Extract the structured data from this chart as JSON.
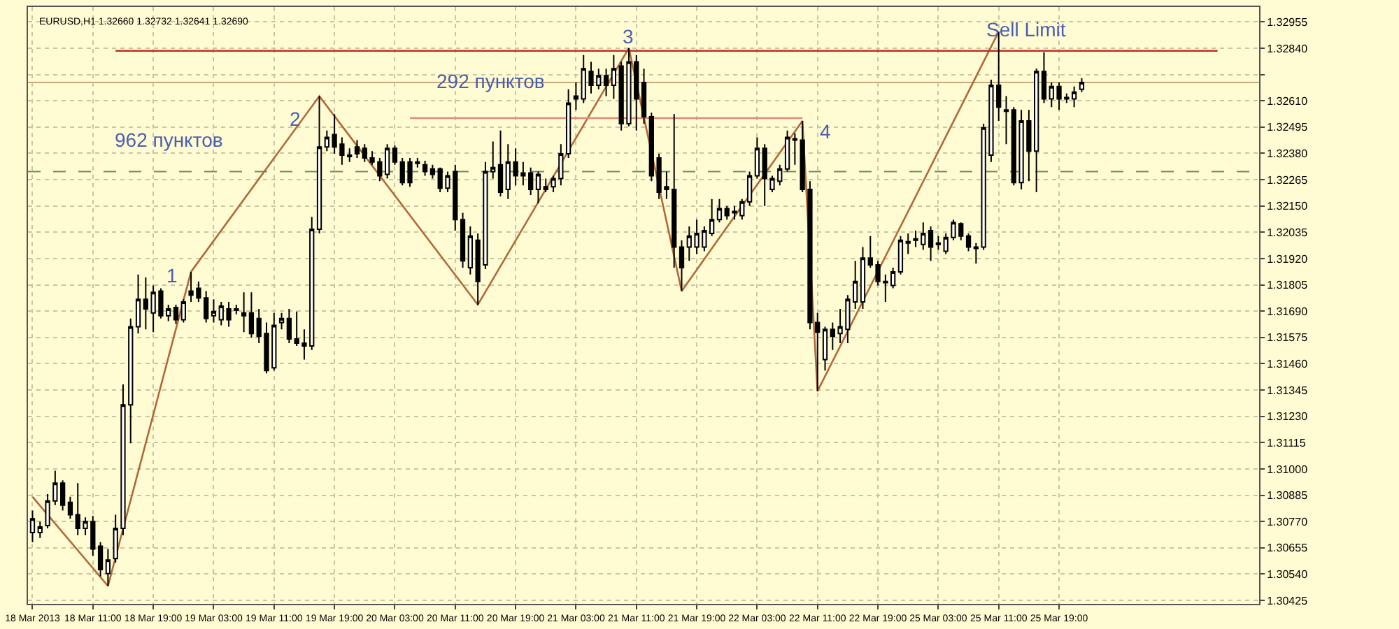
{
  "chart_data": {
    "type": "candlestick",
    "title": "EURUSD,H1 1.32660 1.32732 1.32641 1.32690",
    "color": "#000000",
    "categories": [
      "18 Mar 2013",
      null,
      null,
      null,
      null,
      null,
      null,
      null,
      "18 Mar 11:00",
      null,
      null,
      null,
      null,
      null,
      null,
      null,
      "18 Mar 19:00",
      null,
      null,
      null,
      null,
      null,
      null,
      null,
      "19 Mar 03:00",
      null,
      null,
      null,
      null,
      null,
      null,
      null,
      "19 Mar 11:00",
      null,
      null,
      null,
      null,
      null,
      null,
      null,
      "19 Mar 19:00",
      null,
      null,
      null,
      null,
      null,
      null,
      null,
      "20 Mar 03:00",
      null,
      null,
      null,
      null,
      null,
      null,
      null,
      "20 Mar 11:00",
      null,
      null,
      null,
      null,
      null,
      null,
      null,
      "20 Mar 19:00",
      null,
      null,
      null,
      null,
      null,
      null,
      null,
      "21 Mar 03:00",
      null,
      null,
      null,
      null,
      null,
      null,
      null,
      "21 Mar 11:00",
      null,
      null,
      null,
      null,
      null,
      null,
      null,
      "21 Mar 19:00",
      null,
      null,
      null,
      null,
      null,
      null,
      null,
      "22 Mar 03:00",
      null,
      null,
      null,
      null,
      null,
      null,
      null,
      "22 Mar 11:00",
      null,
      null,
      null,
      null,
      null,
      null,
      null,
      "22 Mar 19:00",
      null,
      null,
      null,
      null,
      null,
      null,
      null,
      "25 Mar 03:00",
      null,
      null,
      null,
      null,
      null,
      null,
      null,
      "25 Mar 11:00",
      null,
      null,
      null,
      null,
      null,
      null,
      null,
      "25 Mar 19:00",
      null,
      null,
      null,
      null,
      null,
      null,
      null,
      null,
      null,
      null,
      null,
      null,
      null,
      null,
      null,
      null,
      null,
      null,
      null,
      null,
      null,
      null,
      null,
      null,
      null,
      null
    ],
    "ohlc": [
      [
        1.30722,
        1.30818,
        1.3068,
        1.30782
      ],
      [
        1.30722,
        1.3077,
        1.30698,
        1.30746
      ],
      [
        1.30752,
        1.3089,
        1.3074,
        1.3086
      ],
      [
        1.3086,
        1.30992,
        1.30842,
        1.30938
      ],
      [
        1.30938,
        1.3095,
        1.30818,
        1.30842
      ],
      [
        1.30854,
        1.30878,
        1.30782,
        1.308
      ],
      [
        1.308,
        1.30938,
        1.3071,
        1.3074
      ],
      [
        1.3074,
        1.30788,
        1.3071,
        1.3077
      ],
      [
        1.3077,
        1.30794,
        1.3062,
        1.3065
      ],
      [
        1.30662,
        1.3068,
        1.3053,
        1.3056
      ],
      [
        1.30542,
        1.3065,
        1.30488,
        1.30602
      ],
      [
        1.30608,
        1.308,
        1.3059,
        1.3074
      ],
      [
        1.3074,
        1.3137,
        1.3071,
        1.3128
      ],
      [
        1.3128,
        1.31658,
        1.31112,
        1.31622
      ],
      [
        1.31622,
        1.3185,
        1.31592,
        1.31742
      ],
      [
        1.31742,
        1.31838,
        1.3161,
        1.317
      ],
      [
        1.31682,
        1.31802,
        1.31598,
        1.31772
      ],
      [
        1.31778,
        1.3179,
        1.31658,
        1.3167
      ],
      [
        1.3167,
        1.31718,
        1.31646,
        1.317
      ],
      [
        1.31706,
        1.31718,
        1.31634,
        1.31652
      ],
      [
        1.31652,
        1.31742,
        1.3164,
        1.3173
      ],
      [
        1.31778,
        1.31862,
        1.3173,
        1.3176
      ],
      [
        1.3179,
        1.3182,
        1.3173,
        1.31748
      ],
      [
        1.31748,
        1.31778,
        1.3164,
        1.31658
      ],
      [
        1.3167,
        1.31742,
        1.3164,
        1.31688
      ],
      [
        1.31652,
        1.3173,
        1.31628,
        1.31712
      ],
      [
        1.317,
        1.3173,
        1.31622,
        1.31652
      ],
      [
        1.31694,
        1.31718,
        1.31676,
        1.317
      ],
      [
        1.31682,
        1.31772,
        1.31598,
        1.3167
      ],
      [
        1.31682,
        1.31772,
        1.31574,
        1.31592
      ],
      [
        1.31658,
        1.317,
        1.3155,
        1.3158
      ],
      [
        1.31592,
        1.3164,
        1.31418,
        1.3143
      ],
      [
        1.31442,
        1.31682,
        1.3143,
        1.31628
      ],
      [
        1.3164,
        1.31682,
        1.3161,
        1.31658
      ],
      [
        1.31658,
        1.317,
        1.3155,
        1.31568
      ],
      [
        1.31568,
        1.31688,
        1.31538,
        1.3155
      ],
      [
        1.3155,
        1.3161,
        1.31478,
        1.31538
      ],
      [
        1.31538,
        1.32102,
        1.3152,
        1.32048
      ],
      [
        1.32048,
        1.3263,
        1.3203,
        1.32408
      ],
      [
        1.32408,
        1.3248,
        1.3239,
        1.3245
      ],
      [
        1.32462,
        1.32552,
        1.32378,
        1.32408
      ],
      [
        1.3242,
        1.3245,
        1.3233,
        1.32372
      ],
      [
        1.32372,
        1.32402,
        1.32342,
        1.32366
      ],
      [
        1.32408,
        1.32438,
        1.3236,
        1.32378
      ],
      [
        1.32402,
        1.3242,
        1.32342,
        1.3236
      ],
      [
        1.3236,
        1.3239,
        1.3233,
        1.32342
      ],
      [
        1.32342,
        1.3236,
        1.32258,
        1.32282
      ],
      [
        1.32288,
        1.3242,
        1.3227,
        1.32402
      ],
      [
        1.32402,
        1.32414,
        1.3233,
        1.32342
      ],
      [
        1.32342,
        1.3236,
        1.3224,
        1.32252
      ],
      [
        1.32342,
        1.3236,
        1.32234,
        1.32252
      ],
      [
        1.32342,
        1.3236,
        1.32318,
        1.32336
      ],
      [
        1.3233,
        1.32348,
        1.32282,
        1.323
      ],
      [
        1.32312,
        1.3233,
        1.3227,
        1.32288
      ],
      [
        1.32312,
        1.32318,
        1.3221,
        1.32228
      ],
      [
        1.32228,
        1.323,
        1.3221,
        1.32282
      ],
      [
        1.323,
        1.3233,
        1.32042,
        1.3209
      ],
      [
        1.3209,
        1.3212,
        1.3188,
        1.3191
      ],
      [
        1.3188,
        1.3206,
        1.3185,
        1.32018
      ],
      [
        1.32,
        1.3203,
        1.31718,
        1.3182
      ],
      [
        1.31892,
        1.32342,
        1.31874,
        1.323
      ],
      [
        1.323,
        1.32432,
        1.3227,
        1.32318
      ],
      [
        1.3233,
        1.3248,
        1.32192,
        1.3221
      ],
      [
        1.32222,
        1.3242,
        1.3218,
        1.32342
      ],
      [
        1.32342,
        1.32402,
        1.3224,
        1.32282
      ],
      [
        1.32282,
        1.32342,
        1.3224,
        1.32294
      ],
      [
        1.32294,
        1.32318,
        1.32198,
        1.32222
      ],
      [
        1.32222,
        1.323,
        1.32162,
        1.32288
      ],
      [
        1.32222,
        1.3227,
        1.3221,
        1.32234
      ],
      [
        1.32234,
        1.32282,
        1.3221,
        1.3227
      ],
      [
        1.3227,
        1.3242,
        1.3224,
        1.32378
      ],
      [
        1.32378,
        1.3266,
        1.3236,
        1.326
      ],
      [
        1.3263,
        1.3269,
        1.3257,
        1.32618
      ],
      [
        1.32618,
        1.3281,
        1.326,
        1.3275
      ],
      [
        1.32738,
        1.3278,
        1.32642,
        1.32678
      ],
      [
        1.32678,
        1.3275,
        1.3266,
        1.3272
      ],
      [
        1.3272,
        1.3275,
        1.3263,
        1.32678
      ],
      [
        1.32678,
        1.3281,
        1.32618,
        1.3275
      ],
      [
        1.32762,
        1.3278,
        1.3248,
        1.3251
      ],
      [
        1.3251,
        1.3284,
        1.32498,
        1.3278
      ],
      [
        1.3278,
        1.3281,
        1.3248,
        1.32618
      ],
      [
        1.3269,
        1.3275,
        1.3251,
        1.3254
      ],
      [
        1.3254,
        1.32558,
        1.32258,
        1.32282
      ],
      [
        1.3236,
        1.32378,
        1.3218,
        1.3221
      ],
      [
        1.32234,
        1.323,
        1.3218,
        1.32222
      ],
      [
        1.32222,
        1.32552,
        1.3188,
        1.3197
      ],
      [
        1.3197,
        1.32,
        1.31778,
        1.3188
      ],
      [
        1.3197,
        1.3206,
        1.3191,
        1.32018
      ],
      [
        1.3197,
        1.3209,
        1.3194,
        1.3203
      ],
      [
        1.3197,
        1.3206,
        1.31952,
        1.32042
      ],
      [
        1.3203,
        1.3218,
        1.32018,
        1.3209
      ],
      [
        1.3209,
        1.3218,
        1.32078,
        1.32138
      ],
      [
        1.32138,
        1.3215,
        1.3209,
        1.32108
      ],
      [
        1.3212,
        1.3215,
        1.3209,
        1.32126
      ],
      [
        1.32108,
        1.3218,
        1.3209,
        1.32168
      ],
      [
        1.32168,
        1.323,
        1.3215,
        1.32282
      ],
      [
        1.32282,
        1.3245,
        1.3227,
        1.32402
      ],
      [
        1.32402,
        1.3242,
        1.3215,
        1.3227
      ],
      [
        1.32222,
        1.32282,
        1.3221,
        1.3227
      ],
      [
        1.32258,
        1.3233,
        1.3224,
        1.32312
      ],
      [
        1.32312,
        1.3248,
        1.323,
        1.3245
      ],
      [
        1.32438,
        1.32468,
        1.3233,
        1.32444
      ],
      [
        1.32438,
        1.32522,
        1.3221,
        1.32222
      ],
      [
        1.32222,
        1.32258,
        1.3161,
        1.3164
      ],
      [
        1.3164,
        1.31682,
        1.3134,
        1.31598
      ],
      [
        1.31478,
        1.31622,
        1.3143,
        1.3161
      ],
      [
        1.3161,
        1.3164,
        1.3152,
        1.3158
      ],
      [
        1.31592,
        1.317,
        1.3155,
        1.31622
      ],
      [
        1.3161,
        1.3176,
        1.3155,
        1.31742
      ],
      [
        1.3173,
        1.3191,
        1.317,
        1.3182
      ],
      [
        1.3173,
        1.3197,
        1.317,
        1.31922
      ],
      [
        1.31922,
        1.32018,
        1.3188,
        1.31892
      ],
      [
        1.31892,
        1.3191,
        1.31802,
        1.3182
      ],
      [
        1.3182,
        1.3185,
        1.3173,
        1.31814
      ],
      [
        1.31802,
        1.3188,
        1.3179,
        1.31862
      ],
      [
        1.31862,
        1.32018,
        1.3185,
        1.32
      ],
      [
        1.31988,
        1.3203,
        1.3194,
        1.31994
      ],
      [
        1.32006,
        1.32042,
        1.3197,
        1.32
      ],
      [
        1.31982,
        1.32078,
        1.31958,
        1.3203
      ],
      [
        1.32042,
        1.3206,
        1.3191,
        1.3197
      ],
      [
        1.31982,
        1.32018,
        1.31958,
        1.31988
      ],
      [
        1.31952,
        1.3203,
        1.3194,
        1.32012
      ],
      [
        1.32012,
        1.3209,
        1.32,
        1.32078
      ],
      [
        1.32072,
        1.32078,
        1.32,
        1.32018
      ],
      [
        1.32018,
        1.3203,
        1.31952,
        1.3197
      ],
      [
        1.3197,
        1.31988,
        1.31898,
        1.31964
      ],
      [
        1.3197,
        1.3251,
        1.31958,
        1.32492
      ],
      [
        1.32372,
        1.32702,
        1.32342,
        1.32678
      ],
      [
        1.32678,
        1.32912,
        1.32522,
        1.32582
      ],
      [
        1.3257,
        1.3263,
        1.3242,
        1.32564
      ],
      [
        1.3257,
        1.32582,
        1.3224,
        1.32252
      ],
      [
        1.32252,
        1.3257,
        1.32222,
        1.32522
      ],
      [
        1.32522,
        1.3257,
        1.32258,
        1.3239
      ],
      [
        1.3239,
        1.3275,
        1.3221,
        1.32738
      ],
      [
        1.32738,
        1.32822,
        1.326,
        1.32618
      ],
      [
        1.32618,
        1.3269,
        1.32582,
        1.32672
      ],
      [
        1.32672,
        1.3269,
        1.3257,
        1.32618
      ],
      [
        1.32624,
        1.32642,
        1.326,
        1.32618
      ],
      [
        1.32618,
        1.32672,
        1.32582,
        1.32648
      ],
      [
        1.3266,
        1.32708,
        1.32648,
        1.3269
      ],
      null,
      null,
      null,
      null,
      null,
      null,
      null,
      null,
      null,
      null,
      null,
      null,
      null,
      null,
      null,
      null,
      null,
      null,
      null,
      null,
      null,
      null,
      null
    ],
    "series": [
      {
        "type": "line",
        "color": "#b06a3a",
        "values": [
          1.30878,
          null,
          null,
          null,
          null,
          null,
          null,
          null,
          null,
          null,
          1.30488,
          null,
          null,
          null,
          null,
          null,
          null,
          null,
          null,
          null,
          null,
          1.31862,
          null,
          null,
          null,
          null,
          null,
          null,
          null,
          null,
          null,
          null,
          null,
          null,
          null,
          null,
          null,
          null,
          1.3263,
          null,
          null,
          null,
          null,
          null,
          null,
          null,
          null,
          null,
          null,
          null,
          null,
          null,
          null,
          null,
          null,
          null,
          null,
          null,
          null,
          1.31718,
          null,
          null,
          null,
          null,
          null,
          null,
          null,
          null,
          null,
          null,
          null,
          null,
          null,
          null,
          null,
          null,
          null,
          null,
          null,
          1.3284,
          null,
          null,
          null,
          null,
          null,
          null,
          1.31778,
          null,
          null,
          null,
          null,
          null,
          null,
          null,
          null,
          null,
          null,
          null,
          null,
          null,
          null,
          null,
          1.32522,
          null,
          1.3134,
          null,
          null,
          null,
          null,
          null,
          null,
          null,
          null,
          null,
          null,
          null,
          null,
          null,
          null,
          null,
          null,
          null,
          null,
          null,
          null,
          null,
          null,
          null,
          1.32912,
          null,
          null,
          null,
          null,
          null,
          null,
          null,
          null,
          null,
          null,
          null,
          null,
          null,
          null,
          null,
          null,
          null,
          null,
          null,
          null,
          null,
          null,
          null,
          null,
          null,
          null,
          null,
          null,
          null,
          null,
          null,
          null,
          null,
          null
        ]
      },
      {
        "type": "line",
        "color": "#c0302a",
        "values": [
          null,
          null,
          null,
          null,
          null,
          null,
          null,
          null,
          null,
          null,
          null,
          1.32828,
          null,
          null,
          null,
          null,
          null,
          null,
          null,
          null,
          null,
          null,
          null,
          null,
          null,
          null,
          null,
          null,
          null,
          null,
          null,
          null,
          null,
          null,
          null,
          null,
          null,
          null,
          null,
          null,
          null,
          null,
          null,
          null,
          null,
          null,
          null,
          null,
          null,
          null,
          null,
          null,
          null,
          null,
          null,
          null,
          null,
          null,
          null,
          null,
          null,
          null,
          null,
          null,
          null,
          null,
          null,
          null,
          null,
          null,
          null,
          null,
          null,
          null,
          null,
          null,
          null,
          null,
          null,
          null,
          null,
          null,
          null,
          null,
          null,
          null,
          null,
          null,
          null,
          null,
          null,
          null,
          null,
          null,
          null,
          null,
          null,
          null,
          null,
          null,
          null,
          null,
          null,
          null,
          null,
          null,
          null,
          null,
          null,
          null,
          null,
          null,
          null,
          null,
          null,
          null,
          null,
          null,
          null,
          null,
          null,
          null,
          null,
          null,
          null,
          null,
          null,
          null,
          null,
          null,
          null,
          null,
          null,
          null,
          null,
          null,
          null,
          null,
          null,
          null,
          null,
          null,
          null,
          null,
          null,
          null,
          null,
          null,
          null,
          null,
          null,
          null,
          null,
          null,
          null,
          null,
          null,
          1.32828,
          null,
          null,
          null,
          null,
          null
        ]
      },
      {
        "type": "line",
        "color": "#e08a78",
        "values": [
          null,
          null,
          null,
          null,
          null,
          null,
          null,
          null,
          null,
          null,
          null,
          null,
          null,
          null,
          null,
          null,
          null,
          null,
          null,
          null,
          null,
          null,
          null,
          null,
          null,
          null,
          null,
          null,
          null,
          null,
          null,
          null,
          null,
          null,
          null,
          null,
          null,
          null,
          null,
          null,
          null,
          null,
          null,
          null,
          null,
          null,
          null,
          null,
          null,
          null,
          1.32534,
          null,
          null,
          null,
          null,
          null,
          null,
          null,
          null,
          null,
          null,
          null,
          null,
          null,
          null,
          null,
          null,
          null,
          null,
          null,
          null,
          null,
          null,
          null,
          null,
          null,
          null,
          null,
          null,
          null,
          null,
          null,
          null,
          null,
          null,
          null,
          null,
          null,
          null,
          null,
          null,
          null,
          null,
          null,
          null,
          null,
          null,
          null,
          null,
          null,
          null,
          null,
          1.32534,
          null,
          null,
          null,
          null,
          null,
          null,
          null,
          null,
          null,
          null,
          null,
          null,
          null,
          null,
          null,
          null,
          null,
          null,
          null,
          null,
          null,
          null,
          null,
          null,
          null,
          null,
          null,
          null,
          null,
          null,
          null,
          null,
          null,
          null,
          null,
          null,
          null,
          null,
          null,
          null,
          null,
          null,
          null,
          null,
          null,
          null,
          null,
          null,
          null,
          null,
          null,
          null,
          null,
          null,
          null,
          null,
          null,
          null,
          null,
          null
        ]
      }
    ],
    "ref_lines": [
      {
        "axis": "y",
        "value": 1.3269,
        "color": "#c8a878",
        "line_style": "solid"
      },
      {
        "axis": "y",
        "value": 1.323,
        "color": "#6e8f5e",
        "line_style": "dashed"
      }
    ],
    "annotations": [
      "1",
      "2",
      "3",
      "4",
      "Sell Limit",
      "962 пунктов",
      "292 пунктов"
    ],
    "ylim": [
      1.3041,
      1.3302
    ],
    "yticks": [
      1.30425,
      {
        "value": 1.3054,
        "label": "1.30540"
      },
      1.30655,
      {
        "value": 1.3077,
        "label": "1.30770"
      },
      1.30885,
      {
        "value": 1.31,
        "label": "1.31000"
      },
      1.31115,
      {
        "value": 1.3123,
        "label": "1.31230"
      },
      1.31345,
      {
        "value": 1.3146,
        "label": "1.31460"
      },
      1.31575,
      {
        "value": 1.3169,
        "label": "1.31690"
      },
      1.31805,
      {
        "value": 1.3192,
        "label": "1.31920"
      },
      1.32035,
      {
        "value": 1.3215,
        "label": "1.32150"
      },
      1.32265,
      {
        "value": 1.3238,
        "label": "1.32380"
      },
      1.32495,
      {
        "value": 1.3261,
        "label": "1.32610"
      },
      {
        "value": 1.32725,
        "label": null
      },
      {
        "value": 1.3284,
        "label": "1.32840"
      },
      1.32955
    ],
    "grid": true
  }
}
